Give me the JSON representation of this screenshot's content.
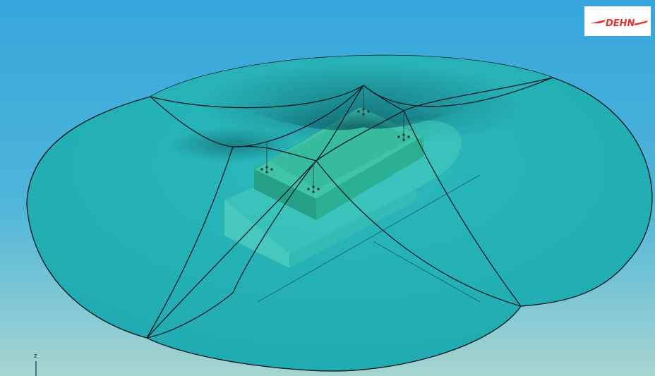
{
  "brand": {
    "logo_text": "DEHN",
    "logo_color": "#e4312b"
  },
  "axis": {
    "label": "z"
  },
  "colors": {
    "sky_top": "#3aa7dd",
    "sky_bottom": "#a9d6d2",
    "sphere_fill": "#23b5b8",
    "building": "#3fc6ad",
    "building_dark": "#1f8f7a",
    "outline": "#0c1c24"
  },
  "scene": {
    "icons": [
      "rolling-sphere-protection-zone",
      "ship-hull",
      "superstructure-block",
      "air-termination-rod"
    ]
  }
}
